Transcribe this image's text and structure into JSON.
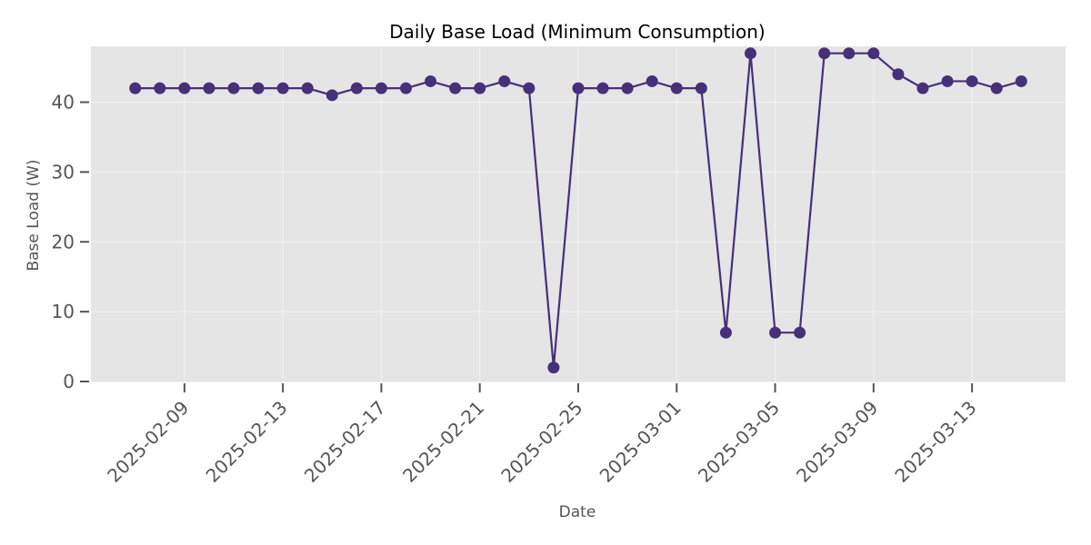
{
  "chart_data": {
    "type": "line",
    "title": "Daily Base Load (Minimum Consumption)",
    "xlabel": "Date",
    "ylabel": "Base Load (W)",
    "ylim": [
      0,
      48
    ],
    "yticks": [
      0,
      10,
      20,
      30,
      40
    ],
    "xticks": [
      "2025-02-09",
      "2025-02-13",
      "2025-02-17",
      "2025-02-21",
      "2025-02-25",
      "2025-03-01",
      "2025-03-05",
      "2025-03-09",
      "2025-03-13"
    ],
    "grid": true,
    "colors": {
      "series": "#46307a",
      "plot_bg": "#e5e5e5",
      "grid": "#f3f3f3"
    },
    "series": [
      {
        "name": "Base Load",
        "x": [
          "2025-02-07",
          "2025-02-08",
          "2025-02-09",
          "2025-02-10",
          "2025-02-11",
          "2025-02-12",
          "2025-02-13",
          "2025-02-14",
          "2025-02-15",
          "2025-02-16",
          "2025-02-17",
          "2025-02-18",
          "2025-02-19",
          "2025-02-20",
          "2025-02-21",
          "2025-02-22",
          "2025-02-23",
          "2025-02-24",
          "2025-02-25",
          "2025-02-26",
          "2025-02-27",
          "2025-02-28",
          "2025-03-01",
          "2025-03-02",
          "2025-03-03",
          "2025-03-04",
          "2025-03-05",
          "2025-03-06",
          "2025-03-07",
          "2025-03-08",
          "2025-03-09",
          "2025-03-10",
          "2025-03-11",
          "2025-03-12",
          "2025-03-13",
          "2025-03-14",
          "2025-03-15"
        ],
        "values": [
          42,
          42,
          42,
          42,
          42,
          42,
          42,
          42,
          41,
          42,
          42,
          42,
          43,
          42,
          42,
          43,
          42,
          2,
          42,
          42,
          42,
          43,
          42,
          42,
          7,
          47,
          7,
          7,
          47,
          47,
          47,
          44,
          42,
          43,
          43,
          42,
          43
        ]
      }
    ]
  }
}
